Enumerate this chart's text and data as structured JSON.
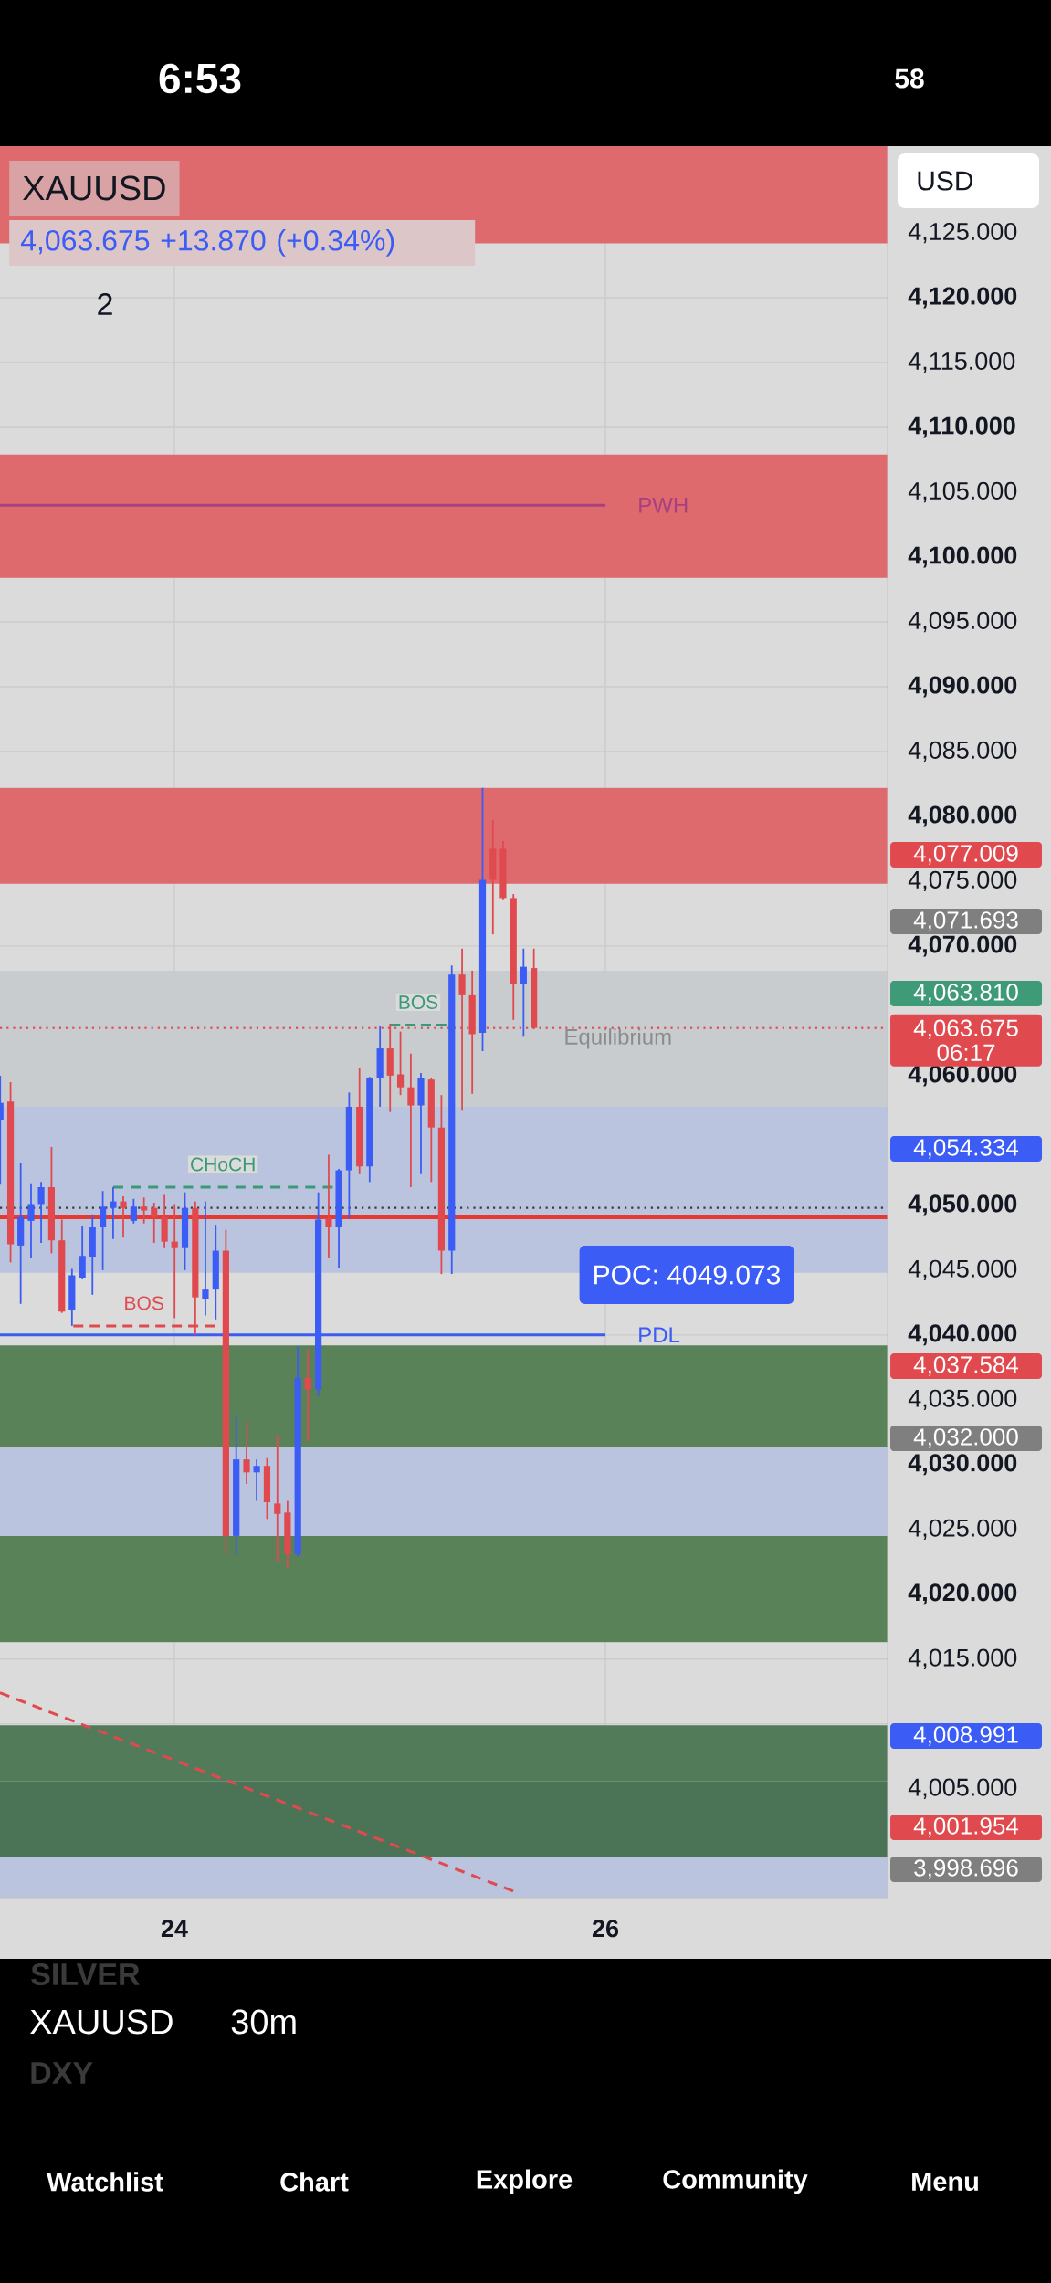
{
  "chart_data": {
    "type": "candlestick",
    "title": "XAUUSD",
    "subtitle": "4,063.675 +13.870 (+0.34%)",
    "ylabel": "USD",
    "x": [
      23.192,
      23.24,
      23.287,
      23.335,
      23.382,
      23.43,
      23.478,
      23.525,
      23.573,
      23.62,
      23.668,
      23.716,
      23.763,
      23.811,
      23.859,
      23.906,
      23.954,
      24.001,
      24.049,
      24.097,
      24.144,
      24.192,
      24.239,
      24.287,
      24.335,
      24.382,
      24.43,
      24.478,
      24.525,
      24.573,
      24.62,
      24.668,
      24.716,
      24.763,
      24.811,
      24.859,
      24.906,
      24.954,
      25.001,
      25.049,
      25.097,
      25.144,
      25.192,
      25.239,
      25.287,
      25.335,
      25.382,
      25.43,
      25.478,
      25.525,
      25.573,
      25.62,
      25.668
    ],
    "ohlc": [
      [
        4056.6,
        4060.0,
        4051.6,
        4057.9
      ],
      [
        4058.0,
        4059.5,
        4045.6,
        4047.0
      ],
      [
        4046.9,
        4053.3,
        4042.4,
        4049.1
      ],
      [
        4048.8,
        4051.7,
        4045.9,
        4050.1
      ],
      [
        4050.1,
        4051.8,
        4047.1,
        4051.4
      ],
      [
        4051.4,
        4054.5,
        4046.3,
        4047.3
      ],
      [
        4047.3,
        4048.9,
        4041.7,
        4041.8
      ],
      [
        4041.9,
        4045.1,
        4040.7,
        4044.6
      ],
      [
        4044.4,
        4048.4,
        4044.3,
        4046.1
      ],
      [
        4046.0,
        4049.3,
        4043.1,
        4048.3
      ],
      [
        4048.3,
        4051.1,
        4045.0,
        4049.9
      ],
      [
        4049.8,
        4051.4,
        4047.4,
        4050.3
      ],
      [
        4050.3,
        4050.7,
        4047.5,
        4049.8
      ],
      [
        4048.8,
        4050.5,
        4048.6,
        4049.9
      ],
      [
        4049.9,
        4050.6,
        4048.6,
        4049.6
      ],
      [
        4049.8,
        4050.2,
        4047.1,
        4049.1
      ],
      [
        4049.1,
        4050.8,
        4046.7,
        4047.2
      ],
      [
        4047.2,
        4050.1,
        4041.3,
        4046.7
      ],
      [
        4046.7,
        4051.0,
        4045.0,
        4049.8
      ],
      [
        4049.8,
        4050.3,
        4040.0,
        4042.9
      ],
      [
        4042.8,
        4050.3,
        4041.5,
        4043.5
      ],
      [
        4043.5,
        4048.5,
        4041.2,
        4046.5
      ],
      [
        4046.5,
        4048.1,
        4023.1,
        4024.5
      ],
      [
        4024.5,
        4033.8,
        4023.0,
        4030.4
      ],
      [
        4030.4,
        4033.3,
        4028.5,
        4029.4
      ],
      [
        4029.4,
        4030.4,
        4027.2,
        4029.9
      ],
      [
        4029.9,
        4030.5,
        4025.8,
        4027.1
      ],
      [
        4027.0,
        4032.3,
        4022.5,
        4026.2
      ],
      [
        4026.3,
        4027.2,
        4022.0,
        4023.1
      ],
      [
        4023.1,
        4039.1,
        4022.9,
        4036.7
      ],
      [
        4036.7,
        4038.9,
        4031.8,
        4035.8
      ],
      [
        4035.8,
        4051.0,
        4035.3,
        4048.9
      ],
      [
        4049.0,
        4053.9,
        4045.9,
        4048.3
      ],
      [
        4048.3,
        4052.8,
        4045.2,
        4052.7
      ],
      [
        4052.7,
        4058.7,
        4049.0,
        4057.6
      ],
      [
        4057.6,
        4060.6,
        4052.4,
        4053.0
      ],
      [
        4053.0,
        4059.9,
        4051.8,
        4059.8
      ],
      [
        4059.8,
        4063.8,
        4057.6,
        4062.1
      ],
      [
        4062.1,
        4064.0,
        4057.2,
        4060.0
      ],
      [
        4060.1,
        4063.4,
        4058.5,
        4059.1
      ],
      [
        4059.1,
        4061.7,
        4051.4,
        4057.7
      ],
      [
        4057.7,
        4060.2,
        4052.4,
        4059.8
      ],
      [
        4059.7,
        4059.8,
        4051.8,
        4056.0
      ],
      [
        4056.0,
        4058.5,
        4044.7,
        4046.5
      ],
      [
        4046.5,
        4068.5,
        4044.7,
        4067.8
      ],
      [
        4067.8,
        4069.8,
        4057.3,
        4066.2
      ],
      [
        4066.2,
        4068.1,
        4058.6,
        4063.2
      ],
      [
        4063.3,
        4082.2,
        4061.9,
        4075.1
      ],
      [
        4077.5,
        4079.7,
        4070.9,
        4075.1
      ],
      [
        4077.5,
        4078.1,
        4073.6,
        4073.7
      ],
      [
        4073.7,
        4074.0,
        4064.3,
        4067.1
      ],
      [
        4067.1,
        4069.8,
        4063.0,
        4068.4
      ],
      [
        4068.3,
        4069.8,
        4063.6,
        4063.675
      ]
    ],
    "colors": [
      "#3b5cf5",
      "#e04a4f",
      "#3b5cf5",
      "#3b5cf5",
      "#3b5cf5",
      "#e04a4f",
      "#e04a4f",
      "#3b5cf5",
      "#3b5cf5",
      "#3b5cf5",
      "#3b5cf5",
      "#3b5cf5",
      "#e04a4f",
      "#3b5cf5",
      "#e04a4f",
      "#e04a4f",
      "#e04a4f",
      "#e04a4f",
      "#3b5cf5",
      "#e04a4f",
      "#3b5cf5",
      "#3b5cf5",
      "#e04a4f",
      "#3b5cf5",
      "#e04a4f",
      "#3b5cf5",
      "#e04a4f",
      "#e04a4f",
      "#e04a4f",
      "#3b5cf5",
      "#e04a4f",
      "#3b5cf5",
      "#e04a4f",
      "#3b5cf5",
      "#3b5cf5",
      "#e04a4f",
      "#3b5cf5",
      "#3b5cf5",
      "#e04a4f",
      "#e04a4f",
      "#e04a4f",
      "#3b5cf5",
      "#e04a4f",
      "#e04a4f",
      "#3b5cf5",
      "#e04a4f",
      "#e04a4f",
      "#3b5cf5",
      "#e04a4f",
      "#e04a4f",
      "#e04a4f",
      "#3b5cf5",
      "#e04a4f"
    ],
    "series": [
      {
        "type": "line",
        "name": "PWH",
        "color": "#a8407f",
        "line_style": "solid",
        "x": [
          23.191,
          26.0
        ],
        "values": [
          4104.0,
          4104.0
        ]
      },
      {
        "type": "line",
        "name": "PDL",
        "color": "#3b5cf5",
        "line_style": "solid",
        "x": [
          23.191,
          26.0
        ],
        "values": [
          4040.0,
          4040.0
        ]
      },
      {
        "type": "line",
        "name": "CHoCH",
        "color": "#3a9a78",
        "line_style": "dashed",
        "x": [
          23.716,
          24.735
        ],
        "values": [
          4051.4,
          4051.4
        ]
      },
      {
        "type": "line",
        "name": "BOS",
        "color": "#e04a4f",
        "line_style": "dashed",
        "x": [
          23.531,
          24.187
        ],
        "values": [
          4040.7,
          4040.7
        ]
      },
      {
        "type": "line",
        "name": "BOS",
        "color": "#3a9a78",
        "line_style": "dashed",
        "x": [
          25.001,
          25.262
        ],
        "values": [
          4063.9,
          4063.9
        ]
      },
      {
        "type": "line",
        "color": "#e04a4f",
        "line_style": "dashed",
        "x": [
          23.191,
          25.572
        ],
        "values": [
          4012.4,
          3997.1
        ]
      }
    ],
    "bands": [
      {
        "axis": "y",
        "from": 4124.2,
        "to": 4131.7,
        "color": "#de6a6e"
      },
      {
        "axis": "y",
        "from": 4098.4,
        "to": 4107.9,
        "color": "#de6a6e"
      },
      {
        "axis": "y",
        "from": 4074.8,
        "to": 4082.2,
        "color": "#de6a6e"
      },
      {
        "axis": "y",
        "from": 4044.8,
        "to": 4058.5,
        "color": "#bac4de"
      },
      {
        "axis": "y",
        "from": 4057.6,
        "to": 4068.1,
        "color": "#c8cccf",
        "label": "Equilibrium"
      },
      {
        "axis": "y",
        "from": 4031.3,
        "to": 4039.2,
        "color": "#5a8258"
      },
      {
        "axis": "y",
        "from": 4022.0,
        "to": 4031.3,
        "color": "#bac4de"
      },
      {
        "axis": "y",
        "from": 4016.3,
        "to": 4024.5,
        "color": "#5a8258"
      },
      {
        "axis": "y",
        "from": 4005.6,
        "to": 4009.9,
        "color": "#527b59"
      },
      {
        "axis": "y",
        "from": 3999.7,
        "to": 4005.6,
        "color": "#4b7356"
      },
      {
        "axis": "y",
        "from": 3996.6,
        "to": 3999.7,
        "color": "#bac4de"
      }
    ],
    "ref_lines": [
      {
        "axis": "y",
        "value": 4063.675,
        "label": "4,063.675 06:17",
        "color": "#e04a4f",
        "line_style": "dotted"
      },
      {
        "axis": "y",
        "value": 4049.8,
        "color": "#3a3a3a",
        "line_style": "dotted"
      },
      {
        "axis": "y",
        "value": 4049.073,
        "label": "POC: 4049.073",
        "color": "#e8392f",
        "line_style": "solid"
      }
    ],
    "annotations": [
      "6:53",
      "58",
      "2",
      "4,077.009",
      "4,071.693",
      "4,063.810",
      "4,054.334",
      "4,037.584",
      "4,032.000",
      "4,008.991",
      "4,001.954",
      "3,998.696",
      "SILVER",
      "XAUUSD",
      "30m",
      "DXY",
      "Watchlist",
      "Chart",
      "Explore",
      "Community",
      "Menu"
    ],
    "xlim": [
      23.191,
      27.309
    ],
    "ylim": [
      3996.6,
      4131.7
    ],
    "xticks": [
      24,
      26
    ],
    "yticks": [
      {
        "value": 4000,
        "label": null
      },
      {
        "value": 4005,
        "label": "4,005.000"
      },
      {
        "value": 4010,
        "label": null
      },
      {
        "value": 4015,
        "label": "4,015.000"
      },
      {
        "value": 4020,
        "label": "4,020.000"
      },
      {
        "value": 4025,
        "label": "4,025.000"
      },
      {
        "value": 4030,
        "label": "4,030.000"
      },
      {
        "value": 4035,
        "label": "4,035.000"
      },
      {
        "value": 4040,
        "label": "4,040.000"
      },
      {
        "value": 4045,
        "label": "4,045.000"
      },
      {
        "value": 4050,
        "label": "4,050.000"
      },
      {
        "value": 4055,
        "label": null
      },
      {
        "value": 4060,
        "label": "4,060.000"
      },
      {
        "value": 4065,
        "label": null
      },
      {
        "value": 4070,
        "label": "4,070.000"
      },
      {
        "value": 4075,
        "label": "4,075.000"
      },
      {
        "value": 4080,
        "label": "4,080.000"
      },
      {
        "value": 4085,
        "label": "4,085.000"
      },
      {
        "value": 4090,
        "label": "4,090.000"
      },
      {
        "value": 4095,
        "label": "4,095.000"
      },
      {
        "value": 4100,
        "label": "4,100.000"
      },
      {
        "value": 4105,
        "label": "4,105.000"
      },
      {
        "value": 4110,
        "label": "4,110.000"
      },
      {
        "value": 4115,
        "label": "4,115.000"
      },
      {
        "value": 4120,
        "label": "4,120.000"
      },
      {
        "value": 4125,
        "label": "4,125.000"
      }
    ],
    "grid": true
  }
}
